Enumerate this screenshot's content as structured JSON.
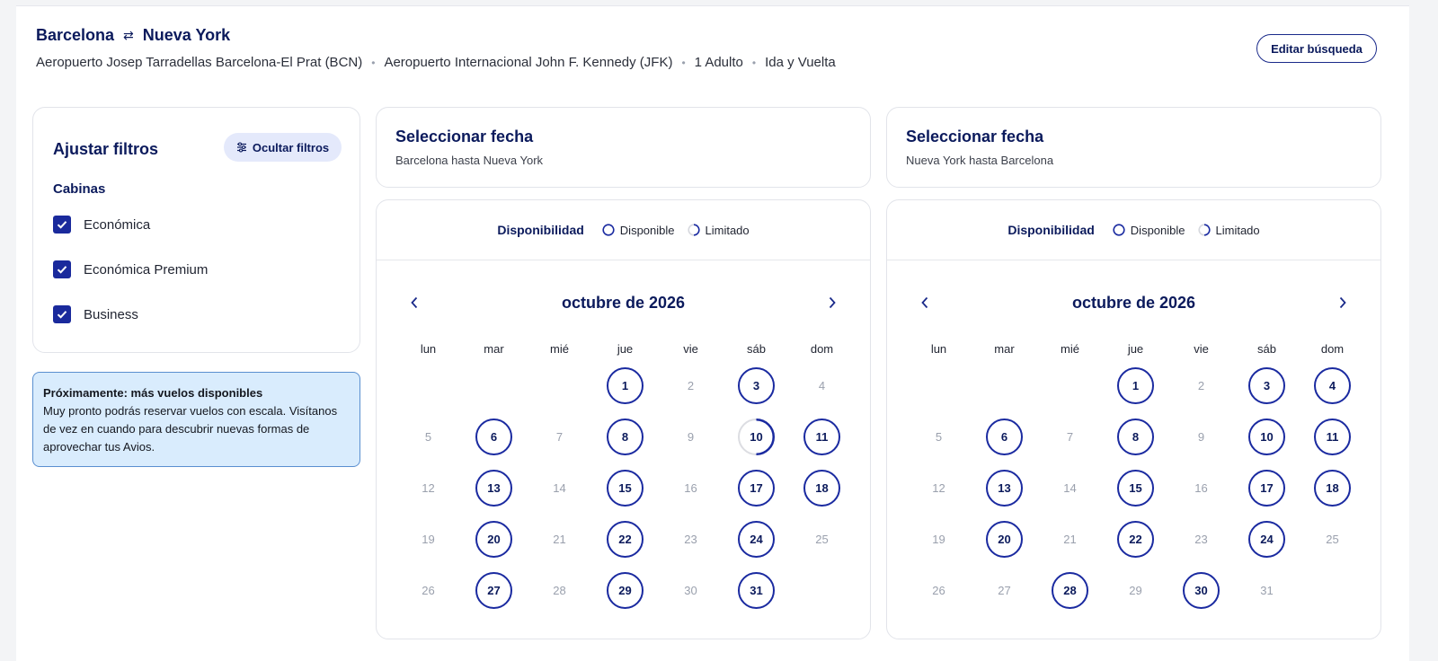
{
  "header": {
    "origin": "Barcelona",
    "swap_icon": "⇄",
    "destination": "Nueva York",
    "details": [
      "Aeropuerto Josep Tarradellas Barcelona-El Prat (BCN)",
      "Aeropuerto Internacional John F. Kennedy (JFK)",
      "1 Adulto",
      "Ida y Vuelta"
    ],
    "edit_label": "Editar búsqueda"
  },
  "filters": {
    "title": "Ajustar filtros",
    "hide_label": "Ocultar filtros",
    "hide_icon": "sliders-icon",
    "cabins_label": "Cabinas",
    "cabins": [
      {
        "label": "Económica",
        "checked": true
      },
      {
        "label": "Económica Premium",
        "checked": true
      },
      {
        "label": "Business",
        "checked": true
      }
    ]
  },
  "notice": {
    "title": "Próximamente: más vuelos disponibles",
    "body": "Muy pronto podrás reservar vuelos con escala. Visítanos de vez en cuando para descubrir nuevas formas de aprovechar tus Avios."
  },
  "colors": {
    "accent": "#1a2aa0",
    "notice_bg": "#d9ecfd",
    "chip_bg": "#e4e9fb"
  },
  "outbound": {
    "title": "Seleccionar fecha",
    "subtitle": "Barcelona hasta Nueva York",
    "legend": {
      "label": "Disponibilidad",
      "available": "Disponible",
      "limited": "Limitado"
    },
    "month": "octubre de 2026",
    "weekdays": [
      "lun",
      "mar",
      "mié",
      "jue",
      "vie",
      "sáb",
      "dom"
    ],
    "offset": 3,
    "days": [
      {
        "d": 1,
        "s": "av"
      },
      {
        "d": 2,
        "s": "nr"
      },
      {
        "d": 3,
        "s": "av"
      },
      {
        "d": 4,
        "s": "nr"
      },
      {
        "d": 5,
        "s": "nr"
      },
      {
        "d": 6,
        "s": "av"
      },
      {
        "d": 7,
        "s": "nr"
      },
      {
        "d": 8,
        "s": "av"
      },
      {
        "d": 9,
        "s": "nr"
      },
      {
        "d": 10,
        "s": "lim"
      },
      {
        "d": 11,
        "s": "av"
      },
      {
        "d": 12,
        "s": "nr"
      },
      {
        "d": 13,
        "s": "av"
      },
      {
        "d": 14,
        "s": "nr"
      },
      {
        "d": 15,
        "s": "av"
      },
      {
        "d": 16,
        "s": "nr"
      },
      {
        "d": 17,
        "s": "av"
      },
      {
        "d": 18,
        "s": "av"
      },
      {
        "d": 19,
        "s": "nr"
      },
      {
        "d": 20,
        "s": "av"
      },
      {
        "d": 21,
        "s": "nr"
      },
      {
        "d": 22,
        "s": "av"
      },
      {
        "d": 23,
        "s": "nr"
      },
      {
        "d": 24,
        "s": "av"
      },
      {
        "d": 25,
        "s": "nr"
      },
      {
        "d": 26,
        "s": "nr"
      },
      {
        "d": 27,
        "s": "av"
      },
      {
        "d": 28,
        "s": "nr"
      },
      {
        "d": 29,
        "s": "av"
      },
      {
        "d": 30,
        "s": "nr"
      },
      {
        "d": 31,
        "s": "av"
      }
    ]
  },
  "return": {
    "title": "Seleccionar fecha",
    "subtitle": "Nueva York hasta Barcelona",
    "legend": {
      "label": "Disponibilidad",
      "available": "Disponible",
      "limited": "Limitado"
    },
    "month": "octubre de 2026",
    "weekdays": [
      "lun",
      "mar",
      "mié",
      "jue",
      "vie",
      "sáb",
      "dom"
    ],
    "offset": 3,
    "days": [
      {
        "d": 1,
        "s": "av"
      },
      {
        "d": 2,
        "s": "nr"
      },
      {
        "d": 3,
        "s": "av"
      },
      {
        "d": 4,
        "s": "av"
      },
      {
        "d": 5,
        "s": "nr"
      },
      {
        "d": 6,
        "s": "av"
      },
      {
        "d": 7,
        "s": "nr"
      },
      {
        "d": 8,
        "s": "av"
      },
      {
        "d": 9,
        "s": "nr"
      },
      {
        "d": 10,
        "s": "av"
      },
      {
        "d": 11,
        "s": "av"
      },
      {
        "d": 12,
        "s": "nr"
      },
      {
        "d": 13,
        "s": "av"
      },
      {
        "d": 14,
        "s": "nr"
      },
      {
        "d": 15,
        "s": "av"
      },
      {
        "d": 16,
        "s": "nr"
      },
      {
        "d": 17,
        "s": "av"
      },
      {
        "d": 18,
        "s": "av"
      },
      {
        "d": 19,
        "s": "nr"
      },
      {
        "d": 20,
        "s": "av"
      },
      {
        "d": 21,
        "s": "nr"
      },
      {
        "d": 22,
        "s": "av"
      },
      {
        "d": 23,
        "s": "nr"
      },
      {
        "d": 24,
        "s": "av"
      },
      {
        "d": 25,
        "s": "nr"
      },
      {
        "d": 26,
        "s": "nr"
      },
      {
        "d": 27,
        "s": "nr"
      },
      {
        "d": 28,
        "s": "av"
      },
      {
        "d": 29,
        "s": "nr"
      },
      {
        "d": 30,
        "s": "av"
      },
      {
        "d": 31,
        "s": "nr"
      }
    ]
  }
}
